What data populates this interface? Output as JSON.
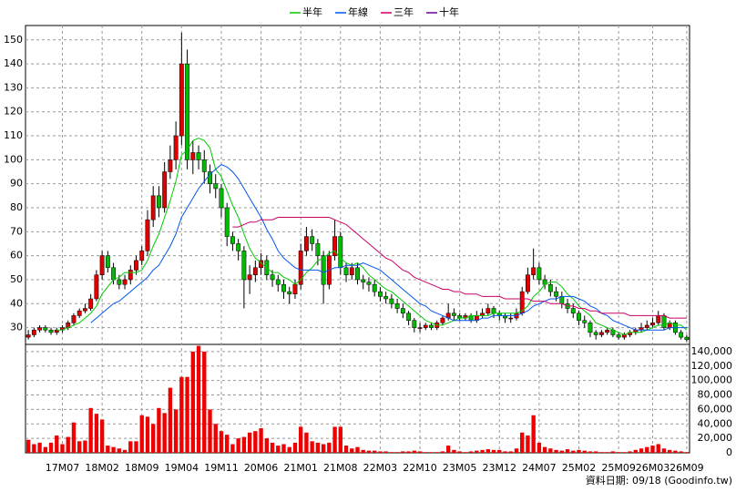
{
  "chart_data": {
    "type": "candlestick",
    "source": "資料日期: 09/18  (Goodinfo.tw)",
    "categories": [
      null,
      null,
      null,
      null,
      null,
      null,
      "17M07",
      null,
      null,
      null,
      null,
      null,
      null,
      "18M02",
      null,
      null,
      null,
      null,
      null,
      null,
      "18M09",
      null,
      null,
      null,
      null,
      null,
      null,
      "19M04",
      null,
      null,
      null,
      null,
      null,
      null,
      "19M11",
      null,
      null,
      null,
      null,
      null,
      null,
      "20M06",
      null,
      null,
      null,
      null,
      null,
      null,
      "21M01",
      null,
      null,
      null,
      null,
      null,
      null,
      "21M08",
      null,
      null,
      null,
      null,
      null,
      null,
      "22M03",
      null,
      null,
      null,
      null,
      null,
      null,
      "22M10",
      null,
      null,
      null,
      null,
      null,
      null,
      "23M05",
      null,
      null,
      null,
      null,
      null,
      null,
      "23M12",
      null,
      null,
      null,
      null,
      null,
      null,
      "24M07",
      null,
      null,
      null,
      null,
      null,
      null,
      "25M02",
      null,
      null,
      null,
      null,
      null,
      null,
      "25M09",
      null,
      null,
      null,
      null,
      null,
      "26M03",
      null,
      null,
      null,
      null,
      null,
      "26M09"
    ],
    "ylim": [
      23,
      156
    ],
    "yticks": [
      30,
      40,
      50,
      60,
      70,
      80,
      90,
      100,
      110,
      120,
      130,
      140,
      150
    ],
    "grid": true,
    "candles": {
      "up_color": "#dd0000",
      "down_color": "#00bb00",
      "open": [
        26,
        27,
        29,
        30,
        29,
        28,
        29,
        30,
        32,
        35,
        37,
        38,
        42,
        52,
        60,
        55,
        50,
        48,
        50,
        54,
        58,
        62,
        75,
        85,
        80,
        95,
        100,
        110,
        140,
        100,
        103,
        100,
        95,
        90,
        88,
        80,
        68,
        65,
        62,
        50,
        52,
        55,
        58,
        52,
        50,
        48,
        45,
        44,
        48,
        62,
        68,
        65,
        60,
        48,
        60,
        68,
        55,
        52,
        55,
        50,
        49,
        48,
        45,
        43,
        42,
        40,
        38,
        36,
        33,
        30,
        30,
        31,
        30,
        32,
        34,
        36,
        35,
        34,
        35,
        33,
        35,
        36,
        38,
        36,
        35,
        34,
        34,
        36,
        45,
        52,
        55,
        50,
        48,
        45,
        43,
        40,
        38,
        36,
        33,
        32,
        28,
        27,
        28,
        29,
        27,
        26,
        27,
        28,
        29,
        30,
        31,
        32,
        35,
        30,
        32,
        28,
        26
      ],
      "high": [
        29,
        30,
        31,
        31,
        30,
        30,
        31,
        33,
        36,
        38,
        40,
        44,
        54,
        62,
        62,
        57,
        52,
        52,
        56,
        60,
        64,
        79,
        89,
        89,
        99,
        106,
        116,
        153,
        146,
        108,
        106,
        104,
        98,
        94,
        90,
        82,
        70,
        67,
        64,
        56,
        58,
        61,
        60,
        54,
        52,
        50,
        47,
        50,
        65,
        72,
        71,
        67,
        62,
        62,
        75,
        70,
        57,
        57,
        57,
        52,
        51,
        50,
        47,
        45,
        44,
        42,
        40,
        37,
        34,
        32,
        32,
        32,
        33,
        35,
        40,
        38,
        36,
        36,
        36,
        37,
        38,
        40,
        39,
        37,
        36,
        36,
        38,
        47,
        55,
        63,
        57,
        52,
        50,
        47,
        45,
        42,
        40,
        37,
        35,
        33,
        29,
        29,
        30,
        30,
        28,
        28,
        29,
        30,
        32,
        33,
        34,
        37,
        36,
        33,
        33,
        29,
        27
      ],
      "low": [
        25,
        26,
        28,
        28,
        27,
        27,
        28,
        29,
        31,
        34,
        36,
        37,
        41,
        50,
        53,
        48,
        46,
        46,
        48,
        52,
        56,
        60,
        72,
        76,
        78,
        92,
        96,
        106,
        96,
        94,
        96,
        90,
        86,
        84,
        76,
        64,
        62,
        58,
        38,
        44,
        49,
        52,
        50,
        47,
        45,
        42,
        40,
        42,
        46,
        60,
        62,
        56,
        40,
        46,
        58,
        52,
        49,
        50,
        48,
        46,
        45,
        43,
        41,
        40,
        38,
        36,
        34,
        31,
        28,
        28,
        29,
        29,
        29,
        31,
        33,
        33,
        33,
        33,
        32,
        32,
        34,
        35,
        34,
        33,
        32,
        32,
        33,
        35,
        44,
        50,
        48,
        46,
        43,
        41,
        38,
        36,
        34,
        31,
        30,
        26,
        25,
        26,
        27,
        26,
        25,
        25,
        26,
        27,
        28,
        29,
        30,
        31,
        29,
        29,
        27,
        25,
        24
      ],
      "close": [
        27,
        29,
        30,
        29,
        28,
        29,
        30,
        32,
        35,
        37,
        38,
        42,
        52,
        60,
        55,
        50,
        48,
        50,
        54,
        58,
        62,
        75,
        85,
        80,
        95,
        100,
        110,
        140,
        100,
        103,
        100,
        95,
        90,
        88,
        80,
        68,
        65,
        62,
        50,
        52,
        55,
        58,
        52,
        50,
        48,
        45,
        44,
        48,
        62,
        68,
        65,
        60,
        48,
        60,
        68,
        55,
        52,
        55,
        50,
        49,
        48,
        45,
        43,
        42,
        40,
        38,
        36,
        33,
        30,
        30,
        31,
        30,
        32,
        34,
        36,
        35,
        34,
        35,
        33,
        35,
        36,
        38,
        36,
        35,
        34,
        34,
        36,
        45,
        52,
        55,
        50,
        48,
        45,
        43,
        40,
        38,
        36,
        33,
        32,
        28,
        27,
        28,
        29,
        27,
        26,
        27,
        28,
        29,
        30,
        31,
        32,
        35,
        30,
        32,
        28,
        26,
        25
      ]
    },
    "series": [
      {
        "name": "半年",
        "color": "#00cc00",
        "values": [
          null,
          null,
          null,
          null,
          null,
          29,
          29,
          30,
          31,
          32,
          34,
          36,
          39,
          44,
          47,
          50,
          51,
          53,
          53,
          53,
          54,
          58,
          64,
          69,
          76,
          83,
          91,
          102,
          104,
          108,
          109,
          108,
          105,
          96,
          93,
          87,
          81,
          76,
          69,
          63,
          59,
          57,
          55,
          53,
          53,
          51,
          50,
          48,
          50,
          53,
          55,
          58,
          59,
          61,
          62,
          59,
          57,
          56,
          57,
          55,
          52,
          50,
          48,
          46,
          45,
          43,
          41,
          39,
          37,
          35,
          33,
          32,
          31,
          31,
          32,
          33,
          34,
          34,
          35,
          35,
          35,
          35,
          36,
          36,
          36,
          36,
          36,
          37,
          39,
          43,
          45,
          48,
          49,
          49,
          47,
          44,
          42,
          39,
          37,
          35,
          32,
          31,
          30,
          29,
          28,
          27,
          28,
          28,
          28,
          29,
          30,
          31,
          31,
          32,
          31,
          31,
          29
        ]
      },
      {
        "name": "年線",
        "color": "#0055ee",
        "values": [
          null,
          null,
          null,
          null,
          null,
          null,
          null,
          null,
          null,
          null,
          null,
          32,
          34,
          36,
          38,
          40,
          41,
          43,
          45,
          47,
          49,
          51,
          54,
          56,
          60,
          64,
          69,
          76,
          80,
          84,
          88,
          91,
          94,
          96,
          98,
          97,
          95,
          92,
          88,
          84,
          80,
          76,
          71,
          67,
          62,
          59,
          57,
          55,
          54,
          54,
          54,
          54,
          53,
          54,
          55,
          55,
          56,
          56,
          56,
          57,
          56,
          55,
          54,
          52,
          50,
          48,
          46,
          44,
          42,
          40,
          39,
          37,
          36,
          35,
          34,
          33,
          33,
          33,
          33,
          33,
          34,
          34,
          35,
          35,
          35,
          35,
          35,
          36,
          37,
          39,
          40,
          41,
          42,
          42,
          43,
          43,
          43,
          42,
          41,
          39,
          38,
          36,
          35,
          33,
          32,
          31,
          30,
          29,
          29,
          29,
          29,
          29,
          29,
          30,
          30,
          30,
          30
        ]
      },
      {
        "name": "三年",
        "color": "#cc0066",
        "values": [
          null,
          null,
          null,
          null,
          null,
          null,
          null,
          null,
          null,
          null,
          null,
          null,
          null,
          null,
          null,
          null,
          null,
          null,
          null,
          null,
          null,
          null,
          null,
          null,
          null,
          null,
          null,
          null,
          null,
          null,
          null,
          null,
          null,
          null,
          null,
          null,
          72,
          72,
          73,
          74,
          74,
          75,
          75,
          75,
          76,
          76,
          76,
          76,
          76,
          76,
          76,
          76,
          76,
          76,
          75,
          74,
          73,
          71,
          69,
          67,
          65,
          63,
          61,
          59,
          58,
          56,
          54,
          53,
          51,
          50,
          49,
          48,
          47,
          46,
          46,
          45,
          45,
          44,
          44,
          44,
          43,
          43,
          43,
          43,
          42,
          42,
          42,
          42,
          42,
          41,
          41,
          41,
          40,
          40,
          40,
          39,
          39,
          38,
          38,
          37,
          37,
          36,
          36,
          36,
          36,
          36,
          35,
          35,
          35,
          35,
          35,
          35,
          35,
          34,
          34,
          34,
          34
        ]
      },
      {
        "name": "十年",
        "color": "#660099",
        "values": [
          null,
          null,
          null,
          null,
          null,
          null,
          null,
          null,
          null,
          null,
          null,
          null,
          null,
          null,
          null,
          null,
          null,
          null,
          null,
          null,
          null,
          null,
          null,
          null,
          null,
          null,
          null,
          null,
          null,
          null,
          null,
          null,
          null,
          null,
          null,
          null,
          null,
          null,
          null,
          null,
          null,
          null,
          null,
          null,
          null,
          null,
          null,
          null,
          null,
          null,
          null,
          null,
          null,
          null,
          null,
          null,
          null,
          null,
          null,
          null,
          null,
          null,
          null,
          null,
          null,
          null,
          null,
          null,
          null,
          null,
          null,
          null,
          null,
          null,
          null,
          null,
          null,
          null,
          null,
          null,
          null,
          null,
          null,
          null,
          null,
          null,
          null,
          null,
          null,
          null,
          null,
          null,
          null,
          null,
          null,
          null,
          null,
          null,
          null,
          null,
          null,
          null,
          null,
          null,
          null,
          null,
          null,
          null,
          null,
          null,
          null,
          null,
          null,
          null,
          null,
          null,
          null
        ]
      }
    ],
    "volume": {
      "color": "#ee0000",
      "ylim": [
        0,
        150000
      ],
      "yticks": [
        0,
        {
          "value": 20000,
          "label": "20,000"
        },
        {
          "value": 40000,
          "label": "40,000"
        },
        {
          "value": 60000,
          "label": "60,000"
        },
        {
          "value": 80000,
          "label": "80,000"
        },
        {
          "value": 100000,
          "label": "100,000"
        },
        {
          "value": 120000,
          "label": "120,000"
        },
        {
          "value": 140000,
          "label": "140,000"
        }
      ],
      "values": [
        18000,
        12000,
        14000,
        8000,
        14000,
        24000,
        12000,
        22000,
        42000,
        16000,
        17000,
        62000,
        54000,
        46000,
        10000,
        8000,
        6000,
        4000,
        16000,
        16000,
        52000,
        50000,
        40000,
        62000,
        55000,
        90000,
        60000,
        105000,
        105000,
        140000,
        148000,
        140000,
        60000,
        40000,
        30000,
        25000,
        12000,
        20000,
        22000,
        28000,
        30000,
        34000,
        20000,
        14000,
        10000,
        12000,
        8000,
        14000,
        36000,
        28000,
        16000,
        14000,
        12000,
        14000,
        36000,
        36000,
        10000,
        6000,
        8000,
        4000,
        3000,
        3000,
        2000,
        2000,
        1000,
        1000,
        2000,
        2000,
        3000,
        2000,
        1000,
        1000,
        1000,
        2000,
        10000,
        4000,
        2000,
        1000,
        2000,
        3000,
        4000,
        5000,
        4000,
        4000,
        2000,
        2000,
        6000,
        28000,
        24000,
        52000,
        14000,
        8000,
        6000,
        4000,
        3000,
        5000,
        3000,
        4000,
        3000,
        2000,
        2000,
        1000,
        1000,
        2000,
        1000,
        1000,
        2000,
        4000,
        6000,
        8000,
        10000,
        12000,
        6000,
        4000,
        3000,
        2000,
        1000
      ]
    }
  }
}
